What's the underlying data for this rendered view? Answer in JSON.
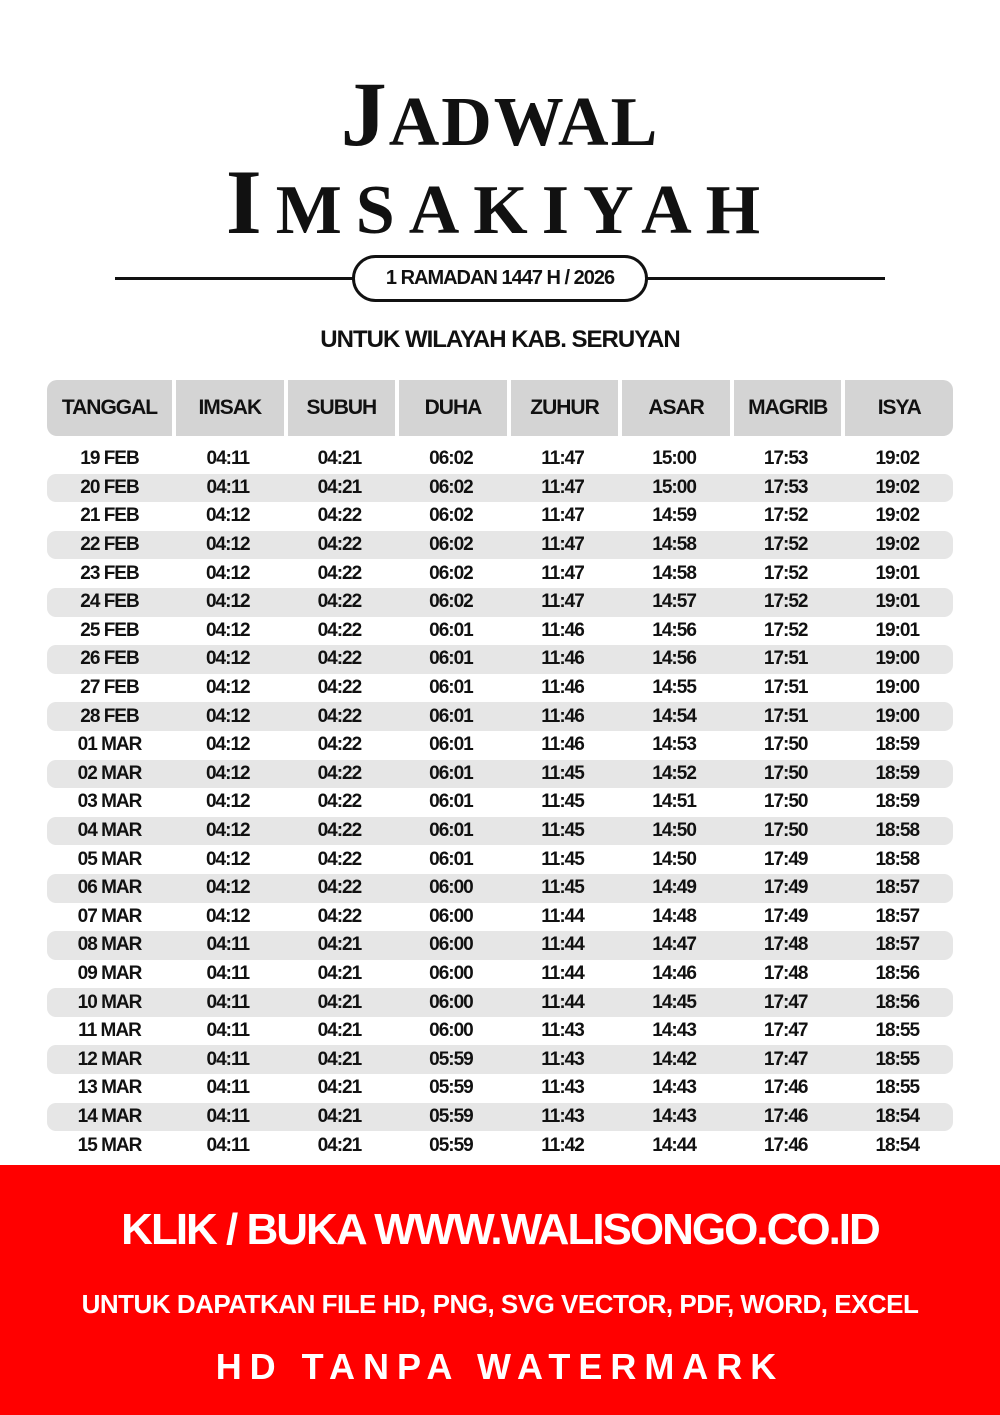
{
  "title": {
    "line1_first": "J",
    "line1_rest": "ADWAL",
    "line2_first": "I",
    "line2_rest": "MSAKIYAH"
  },
  "subtitle": "1 RAMADAN 1447 H / 2026",
  "region": "UNTUK WILAYAH KAB. SERUYAN",
  "table": {
    "headers": [
      "TANGGAL",
      "IMSAK",
      "SUBUH",
      "DUHA",
      "ZUHUR",
      "ASAR",
      "MAGRIB",
      "ISYA"
    ],
    "rows": [
      [
        "19 FEB",
        "04:11",
        "04:21",
        "06:02",
        "11:47",
        "15:00",
        "17:53",
        "19:02"
      ],
      [
        "20 FEB",
        "04:11",
        "04:21",
        "06:02",
        "11:47",
        "15:00",
        "17:53",
        "19:02"
      ],
      [
        "21 FEB",
        "04:12",
        "04:22",
        "06:02",
        "11:47",
        "14:59",
        "17:52",
        "19:02"
      ],
      [
        "22 FEB",
        "04:12",
        "04:22",
        "06:02",
        "11:47",
        "14:58",
        "17:52",
        "19:02"
      ],
      [
        "23 FEB",
        "04:12",
        "04:22",
        "06:02",
        "11:47",
        "14:58",
        "17:52",
        "19:01"
      ],
      [
        "24 FEB",
        "04:12",
        "04:22",
        "06:02",
        "11:47",
        "14:57",
        "17:52",
        "19:01"
      ],
      [
        "25 FEB",
        "04:12",
        "04:22",
        "06:01",
        "11:46",
        "14:56",
        "17:52",
        "19:01"
      ],
      [
        "26 FEB",
        "04:12",
        "04:22",
        "06:01",
        "11:46",
        "14:56",
        "17:51",
        "19:00"
      ],
      [
        "27 FEB",
        "04:12",
        "04:22",
        "06:01",
        "11:46",
        "14:55",
        "17:51",
        "19:00"
      ],
      [
        "28 FEB",
        "04:12",
        "04:22",
        "06:01",
        "11:46",
        "14:54",
        "17:51",
        "19:00"
      ],
      [
        "01 MAR",
        "04:12",
        "04:22",
        "06:01",
        "11:46",
        "14:53",
        "17:50",
        "18:59"
      ],
      [
        "02 MAR",
        "04:12",
        "04:22",
        "06:01",
        "11:45",
        "14:52",
        "17:50",
        "18:59"
      ],
      [
        "03 MAR",
        "04:12",
        "04:22",
        "06:01",
        "11:45",
        "14:51",
        "17:50",
        "18:59"
      ],
      [
        "04 MAR",
        "04:12",
        "04:22",
        "06:01",
        "11:45",
        "14:50",
        "17:50",
        "18:58"
      ],
      [
        "05 MAR",
        "04:12",
        "04:22",
        "06:01",
        "11:45",
        "14:50",
        "17:49",
        "18:58"
      ],
      [
        "06 MAR",
        "04:12",
        "04:22",
        "06:00",
        "11:45",
        "14:49",
        "17:49",
        "18:57"
      ],
      [
        "07 MAR",
        "04:12",
        "04:22",
        "06:00",
        "11:44",
        "14:48",
        "17:49",
        "18:57"
      ],
      [
        "08 MAR",
        "04:11",
        "04:21",
        "06:00",
        "11:44",
        "14:47",
        "17:48",
        "18:57"
      ],
      [
        "09 MAR",
        "04:11",
        "04:21",
        "06:00",
        "11:44",
        "14:46",
        "17:48",
        "18:56"
      ],
      [
        "10 MAR",
        "04:11",
        "04:21",
        "06:00",
        "11:44",
        "14:45",
        "17:47",
        "18:56"
      ],
      [
        "11 MAR",
        "04:11",
        "04:21",
        "06:00",
        "11:43",
        "14:43",
        "17:47",
        "18:55"
      ],
      [
        "12 MAR",
        "04:11",
        "04:21",
        "05:59",
        "11:43",
        "14:42",
        "17:47",
        "18:55"
      ],
      [
        "13 MAR",
        "04:11",
        "04:21",
        "05:59",
        "11:43",
        "14:43",
        "17:46",
        "18:55"
      ],
      [
        "14 MAR",
        "04:11",
        "04:21",
        "05:59",
        "11:43",
        "14:43",
        "17:46",
        "18:54"
      ],
      [
        "15 MAR",
        "04:11",
        "04:21",
        "05:59",
        "11:42",
        "14:44",
        "17:46",
        "18:54"
      ]
    ]
  },
  "banner": {
    "line1": "KLIK / BUKA WWW.WALISONGO.CO.ID",
    "line2": "UNTUK DAPATKAN FILE HD, PNG, SVG VECTOR, PDF, WORD, EXCEL",
    "line3": "HD TANPA WATERMARK",
    "color": "#ff0000"
  }
}
